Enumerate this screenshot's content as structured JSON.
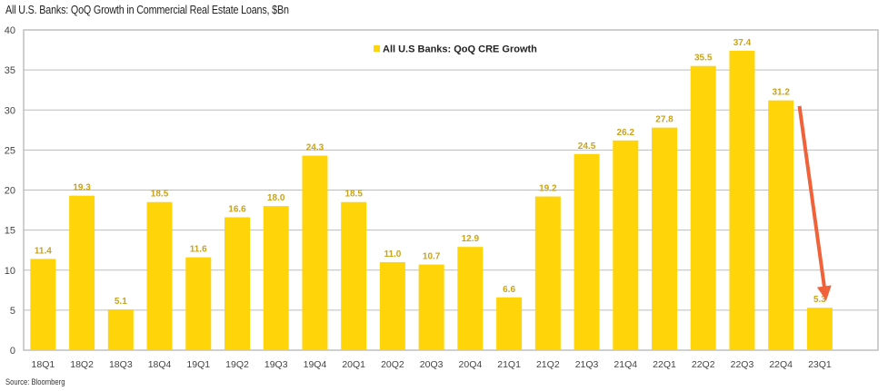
{
  "title": "All U.S. Banks: QoQ Growth in Commercial Real Estate Loans, $Bn",
  "source": "Source: Bloomberg",
  "colors": {
    "bar": "#FFD50A",
    "data_label": "#C9A31A",
    "arrow": "#F0623A",
    "grid": "#BDBDBD",
    "frame": "#AFAFAF"
  },
  "chart_data": {
    "type": "bar",
    "title": "All U.S. Banks: QoQ Growth in Commercial Real Estate Loans, $Bn",
    "xlabel": "",
    "ylabel": "",
    "ylim": [
      0,
      40
    ],
    "yticks": [
      0,
      5,
      10,
      15,
      20,
      25,
      30,
      35,
      40
    ],
    "grid": true,
    "legend_position": "top-center",
    "categories": [
      "18Q1",
      "18Q2",
      "18Q3",
      "18Q4",
      "19Q1",
      "19Q2",
      "19Q3",
      "19Q4",
      "20Q1",
      "20Q2",
      "20Q3",
      "20Q4",
      "21Q1",
      "21Q2",
      "21Q3",
      "21Q4",
      "22Q1",
      "22Q2",
      "22Q3",
      "22Q4",
      "23Q1"
    ],
    "series": [
      {
        "name": "All U.S Banks: QoQ CRE Growth",
        "values": [
          11.4,
          19.3,
          5.1,
          18.5,
          11.6,
          16.6,
          18.0,
          24.3,
          18.5,
          11.0,
          10.7,
          12.9,
          6.6,
          19.2,
          24.5,
          26.2,
          27.8,
          35.5,
          37.4,
          31.2,
          5.3
        ]
      }
    ],
    "data_labels": [
      "11.4",
      "19.3",
      "5.1",
      "18.5",
      "11.6",
      "16.6",
      "18.0",
      "24.3",
      "18.5",
      "11.0",
      "10.7",
      "12.9",
      "6.6",
      "19.2",
      "24.5",
      "26.2",
      "27.8",
      "35.5",
      "37.4",
      "31.2",
      "5.3"
    ],
    "annotations": [
      {
        "type": "arrow",
        "description": "downward arrow from 22Q4 level to 23Q1 bar",
        "from": {
          "category": "22Q4-23Q1",
          "value": 30.5
        },
        "to": {
          "category": "23Q1",
          "value": 5.5
        }
      }
    ]
  }
}
